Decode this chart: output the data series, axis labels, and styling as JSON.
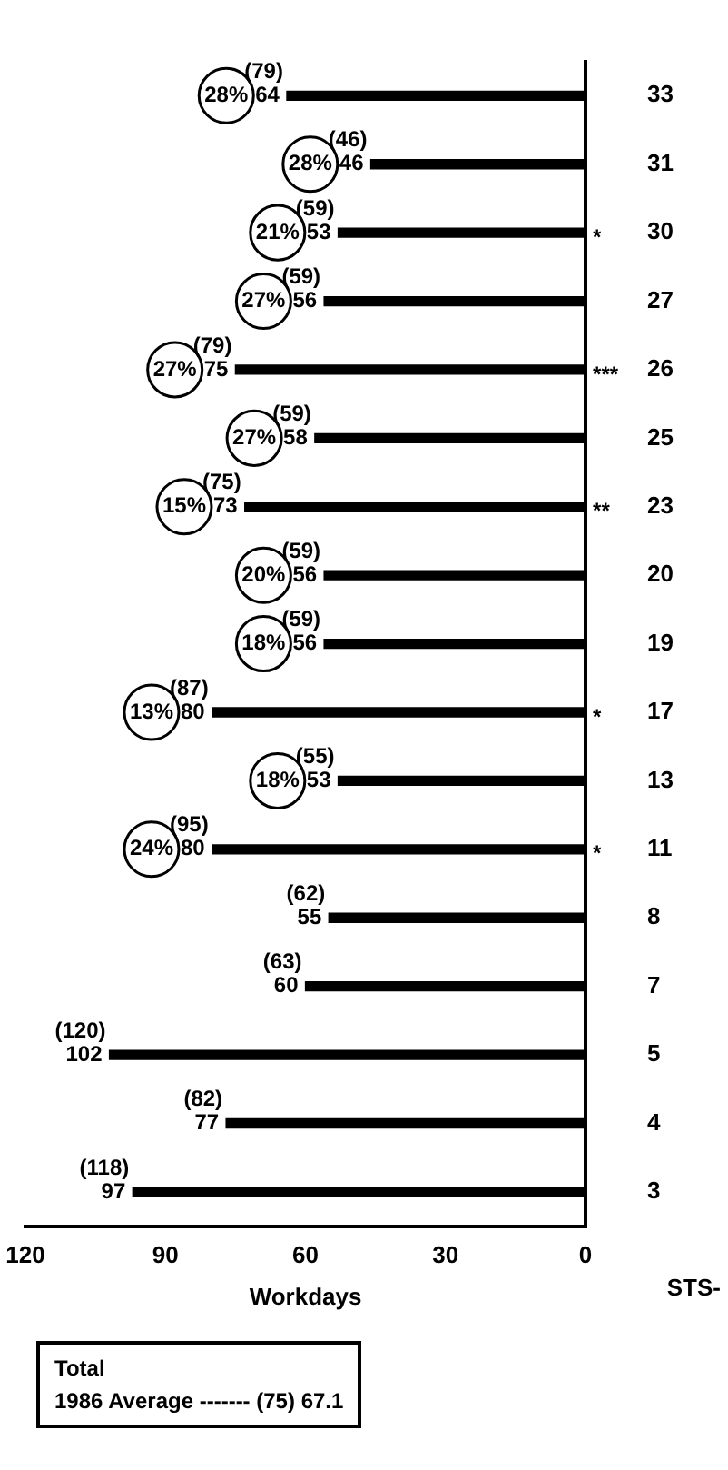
{
  "chart_data": {
    "type": "bar",
    "orientation": "horizontal",
    "xlabel": "Workdays",
    "ylabel": "STS-",
    "categories": [
      "33",
      "31",
      "30",
      "27",
      "26",
      "25",
      "23",
      "20",
      "19",
      "17",
      "13",
      "11",
      "8",
      "7",
      "5",
      "4",
      "3"
    ],
    "values": [
      64,
      46,
      53,
      56,
      75,
      58,
      73,
      56,
      56,
      80,
      53,
      80,
      55,
      60,
      102,
      77,
      97
    ],
    "color": "#000000",
    "data_labels": true,
    "xlim": [
      120,
      0
    ],
    "xticks": [
      0,
      30,
      60,
      90,
      120
    ],
    "grid": false,
    "annotations": [
      {
        "text": "(79)",
        "x": 64,
        "y": "33"
      },
      {
        "text": "28%",
        "x": 64,
        "y": "33"
      },
      {
        "text": "(46)",
        "x": 46,
        "y": "31"
      },
      {
        "text": "28%",
        "x": 46,
        "y": "31"
      },
      {
        "text": "(59)",
        "x": 53,
        "y": "30"
      },
      {
        "text": "21%",
        "x": 53,
        "y": "30"
      },
      {
        "text": "(59)",
        "x": 56,
        "y": "27"
      },
      {
        "text": "27%",
        "x": 56,
        "y": "27"
      },
      {
        "text": "(79)",
        "x": 75,
        "y": "26"
      },
      {
        "text": "27%",
        "x": 75,
        "y": "26"
      },
      {
        "text": "(59)",
        "x": 58,
        "y": "25"
      },
      {
        "text": "27%",
        "x": 58,
        "y": "25"
      },
      {
        "text": "(75)",
        "x": 73,
        "y": "23"
      },
      {
        "text": "15%",
        "x": 73,
        "y": "23"
      },
      {
        "text": "(59)",
        "x": 56,
        "y": "20"
      },
      {
        "text": "20%",
        "x": 56,
        "y": "20"
      },
      {
        "text": "(59)",
        "x": 56,
        "y": "19"
      },
      {
        "text": "18%",
        "x": 56,
        "y": "19"
      },
      {
        "text": "(87)",
        "x": 80,
        "y": "17"
      },
      {
        "text": "13%",
        "x": 80,
        "y": "17"
      },
      {
        "text": "(55)",
        "x": 53,
        "y": "13"
      },
      {
        "text": "18%",
        "x": 53,
        "y": "13"
      },
      {
        "text": "(95)",
        "x": 80,
        "y": "11"
      },
      {
        "text": "24%",
        "x": 80,
        "y": "11"
      },
      {
        "text": "(62)",
        "x": 55,
        "y": "8"
      },
      {
        "text": "(63)",
        "x": 60,
        "y": "7"
      },
      {
        "text": "(120)",
        "x": 102,
        "y": "5"
      },
      {
        "text": "(82)",
        "x": 77,
        "y": "4"
      },
      {
        "text": "(118)",
        "x": 97,
        "y": "3"
      },
      {
        "text": "*",
        "x": 0,
        "y": "30"
      },
      {
        "text": "***",
        "x": 0,
        "y": "26"
      },
      {
        "text": "**",
        "x": 0,
        "y": "23"
      },
      {
        "text": "*",
        "x": 0,
        "y": "17"
      },
      {
        "text": "*",
        "x": 0,
        "y": "11"
      },
      "Total",
      "1986 Average ------- (75) 67.1"
    ]
  }
}
